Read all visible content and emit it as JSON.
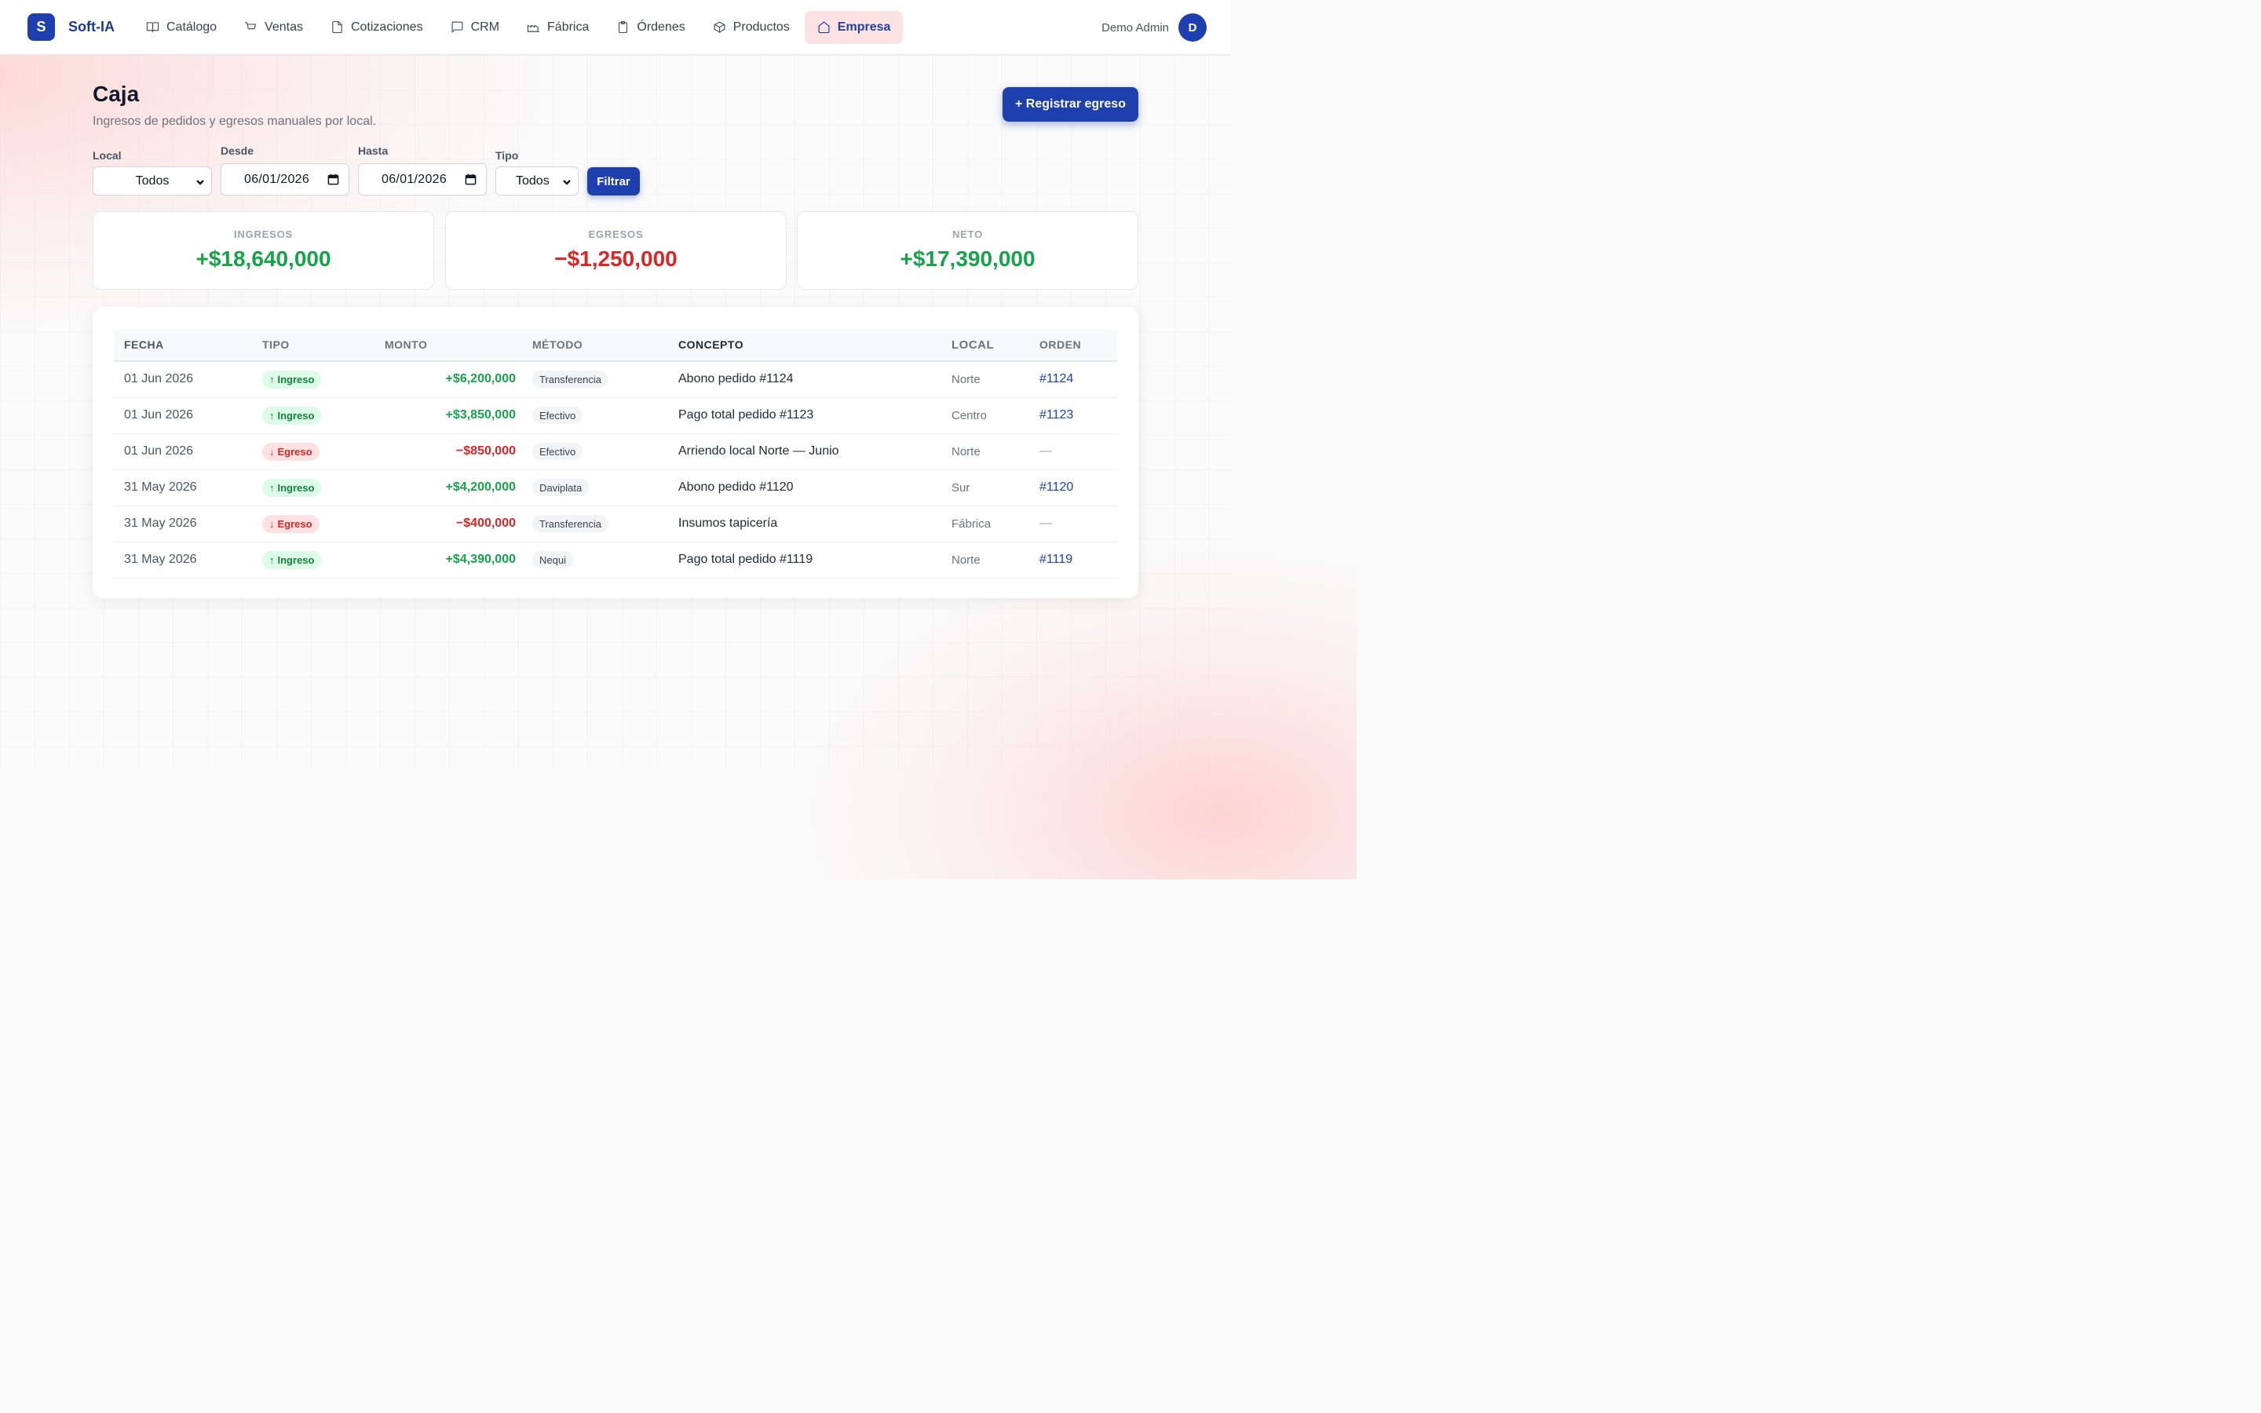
{
  "app": {
    "logo_letter": "S",
    "name": "Soft-IA"
  },
  "nav": {
    "items": [
      {
        "label": "Catálogo",
        "icon": "book-icon"
      },
      {
        "label": "Ventas",
        "icon": "cart-icon"
      },
      {
        "label": "Cotizaciones",
        "icon": "document-icon"
      },
      {
        "label": "CRM",
        "icon": "chat-icon"
      },
      {
        "label": "Fábrica",
        "icon": "factory-icon"
      },
      {
        "label": "Órdenes",
        "icon": "clipboard-icon"
      },
      {
        "label": "Productos",
        "icon": "box-icon"
      },
      {
        "label": "Empresa",
        "icon": "home-icon",
        "active": true
      }
    ]
  },
  "user": {
    "name": "Demo Admin",
    "initial": "D"
  },
  "page": {
    "title": "Caja",
    "subtitle": "Ingresos de pedidos y egresos manuales por local.",
    "primary_button": "+ Registrar egreso"
  },
  "filters": {
    "local_label": "Local",
    "local_value": "Todos",
    "desde_label": "Desde",
    "desde_value": "06/01/2026",
    "hasta_label": "Hasta",
    "hasta_value": "06/01/2026",
    "tipo_label": "Tipo",
    "tipo_value": "Todos",
    "filter_button": "Filtrar"
  },
  "summary": {
    "ingresos": {
      "label": "INGRESOS",
      "value": "+$18,640,000"
    },
    "egresos": {
      "label": "EGRESOS",
      "value": "−$1,250,000"
    },
    "neto": {
      "label": "NETO",
      "value": "+$17,390,000"
    }
  },
  "table": {
    "headers": [
      "FECHA",
      "TIPO",
      "MONTO",
      "MÉTODO",
      "CONCEPTO",
      "LOCAL",
      "ORDEN"
    ],
    "rows": [
      {
        "fecha": "01 Jun 2026",
        "tipo": "Ingreso",
        "arrow": "↑",
        "monto": "+$6,200,000",
        "metodo": "Transferencia",
        "concepto": "Abono pedido #1124",
        "local": "Norte",
        "orden": "#1124"
      },
      {
        "fecha": "01 Jun 2026",
        "tipo": "Ingreso",
        "arrow": "↑",
        "monto": "+$3,850,000",
        "metodo": "Efectivo",
        "concepto": "Pago total pedido #1123",
        "local": "Centro",
        "orden": "#1123"
      },
      {
        "fecha": "01 Jun 2026",
        "tipo": "Egreso",
        "arrow": "↓",
        "monto": "−$850,000",
        "metodo": "Efectivo",
        "concepto": "Arriendo local Norte — Junio",
        "local": "Norte",
        "orden": "—"
      },
      {
        "fecha": "31 May 2026",
        "tipo": "Ingreso",
        "arrow": "↑",
        "monto": "+$4,200,000",
        "metodo": "Daviplata",
        "concepto": "Abono pedido #1120",
        "local": "Sur",
        "orden": "#1120"
      },
      {
        "fecha": "31 May 2026",
        "tipo": "Egreso",
        "arrow": "↓",
        "monto": "−$400,000",
        "metodo": "Transferencia",
        "concepto": "Insumos tapicería",
        "local": "Fábrica",
        "orden": "—"
      },
      {
        "fecha": "31 May 2026",
        "tipo": "Ingreso",
        "arrow": "↑",
        "monto": "+$4,390,000",
        "metodo": "Nequi",
        "concepto": "Pago total pedido #1119",
        "local": "Norte",
        "orden": "#1119"
      }
    ]
  },
  "colors": {
    "brand": "#1e40af",
    "positive": "#16a34a",
    "negative": "#dc2626",
    "active_nav_bg": "#fde2e2"
  }
}
